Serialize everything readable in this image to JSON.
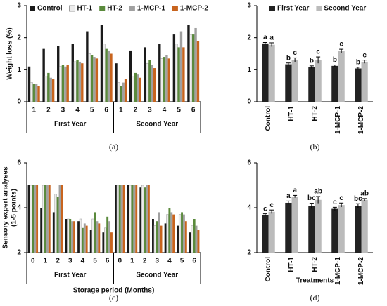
{
  "chart_data": [
    {
      "type": "bar",
      "label": "(a)",
      "ylabel": [
        "Weight loss (%)"
      ],
      "ylim": [
        0,
        3
      ],
      "yticks": [
        0,
        1,
        2,
        3
      ],
      "legend": "top",
      "categories": [
        "1",
        "2",
        "3",
        "4",
        "5",
        "6",
        "1",
        "2",
        "3",
        "4",
        "5",
        "6"
      ],
      "groups": [
        "First Year",
        "Second Year"
      ],
      "series": [
        {
          "name": "Control",
          "color": "#1a1a1a",
          "values": [
            1.1,
            1.65,
            1.75,
            1.8,
            2.2,
            2.4,
            1.2,
            1.6,
            1.7,
            1.8,
            2.1,
            2.4
          ]
        },
        {
          "name": "HT-1",
          "color": "#ececec",
          "values": [
            0.6,
            0.8,
            1.1,
            1.25,
            1.5,
            1.8,
            0.6,
            0.8,
            1.2,
            1.35,
            1.8,
            2.1
          ]
        },
        {
          "name": "HT-2",
          "color": "#5a8a3c",
          "values": [
            0.55,
            0.9,
            1.15,
            1.3,
            1.45,
            1.65,
            0.5,
            0.9,
            1.3,
            1.4,
            1.7,
            2.1
          ]
        },
        {
          "name": "1-MCP-1",
          "color": "#a0a0a0",
          "values": [
            0.55,
            0.75,
            1.1,
            1.25,
            1.4,
            1.6,
            0.6,
            0.85,
            1.15,
            1.45,
            2.2,
            2.3
          ]
        },
        {
          "name": "1-MCP-2",
          "color": "#c8641e",
          "values": [
            0.5,
            0.7,
            1.15,
            1.2,
            1.35,
            1.5,
            0.7,
            0.75,
            1.05,
            1.35,
            1.7,
            1.9
          ]
        }
      ]
    },
    {
      "type": "bar",
      "label": "(b)",
      "ylim": [
        0,
        3
      ],
      "yticks": [
        0,
        1,
        2,
        3
      ],
      "legend": "top",
      "rotate_labels": true,
      "categories": [
        "Control",
        "HT-1",
        "HT-2",
        "1-MCP-1",
        "1-MCP-2"
      ],
      "series": [
        {
          "name": "First Year",
          "color": "#222222",
          "values": [
            1.82,
            1.17,
            1.08,
            1.12,
            1.04
          ],
          "errors": [
            0.03,
            0.04,
            0.04,
            0.03,
            0.04
          ],
          "letters": [
            "a",
            "b",
            "b",
            "b",
            "b"
          ]
        },
        {
          "name": "Second Year",
          "color": "#bbbbbb",
          "values": [
            1.78,
            1.3,
            1.3,
            1.58,
            1.25
          ],
          "errors": [
            0.06,
            0.07,
            0.1,
            0.06,
            0.05
          ],
          "letters": [
            "a",
            "c",
            "c",
            "c",
            "c"
          ]
        }
      ]
    },
    {
      "type": "bar",
      "label": "(c)",
      "ylabel": [
        "Sensory expert analyses",
        "(1-5 points)"
      ],
      "xlabel": "Storage period (Months)",
      "ylim": [
        2,
        6
      ],
      "yticks": [
        2,
        4,
        6
      ],
      "categories": [
        "0",
        "1",
        "2",
        "3",
        "4",
        "5",
        "6",
        "0",
        "1",
        "2",
        "3",
        "4",
        "5",
        "6"
      ],
      "groups": [
        "First Year",
        "Second Year"
      ],
      "series": [
        {
          "name": "Control",
          "color": "#1a1a1a",
          "values": [
            5,
            4.0,
            3.8,
            3.5,
            3.4,
            3.0,
            2.9,
            5,
            5,
            4.9,
            3.5,
            3.3,
            3.2,
            2.9
          ]
        },
        {
          "name": "HT-1",
          "color": "#ececec",
          "values": [
            5,
            5,
            4.6,
            3.5,
            3.5,
            3.5,
            3.1,
            5,
            5,
            5,
            3.2,
            3.7,
            3.7,
            3.2
          ]
        },
        {
          "name": "HT-2",
          "color": "#5a8a3c",
          "values": [
            5,
            5,
            4.5,
            3.5,
            3.1,
            3.8,
            3.6,
            5,
            5,
            4.9,
            3.4,
            4.0,
            3.8,
            3.5
          ]
        },
        {
          "name": "1-MCP-1",
          "color": "#a0a0a0",
          "values": [
            5,
            5,
            5,
            3.4,
            3.3,
            3.4,
            3.4,
            5,
            5,
            5,
            3.8,
            3.8,
            3.7,
            3.2
          ]
        },
        {
          "name": "1-MCP-2",
          "color": "#c8641e",
          "values": [
            5,
            5,
            5,
            3.4,
            3.2,
            3.3,
            2.9,
            5,
            5,
            5,
            3.2,
            3.7,
            3.4,
            3.0
          ]
        }
      ]
    },
    {
      "type": "bar",
      "label": "(d)",
      "xlabel": "Treatments",
      "ylim": [
        2,
        6
      ],
      "yticks": [
        2,
        4,
        6
      ],
      "rotate_labels": true,
      "categories": [
        "Control",
        "HT-1",
        "HT-2",
        "1-MCP-1",
        "1-MCP-2"
      ],
      "series": [
        {
          "name": "First Year",
          "color": "#222222",
          "values": [
            3.68,
            4.22,
            4.08,
            3.95,
            4.08
          ],
          "errors": [
            0.05,
            0.08,
            0.12,
            0.07,
            0.1
          ],
          "letters": [
            "c",
            "a",
            "bc",
            "c",
            "bc"
          ]
        },
        {
          "name": "Second Year",
          "color": "#bbbbbb",
          "values": [
            3.82,
            4.5,
            4.35,
            4.12,
            4.35
          ],
          "errors": [
            0.08,
            0.05,
            0.15,
            0.09,
            0.06
          ],
          "letters": [
            "c",
            "a",
            "ab",
            "c",
            "ab"
          ]
        }
      ]
    }
  ]
}
